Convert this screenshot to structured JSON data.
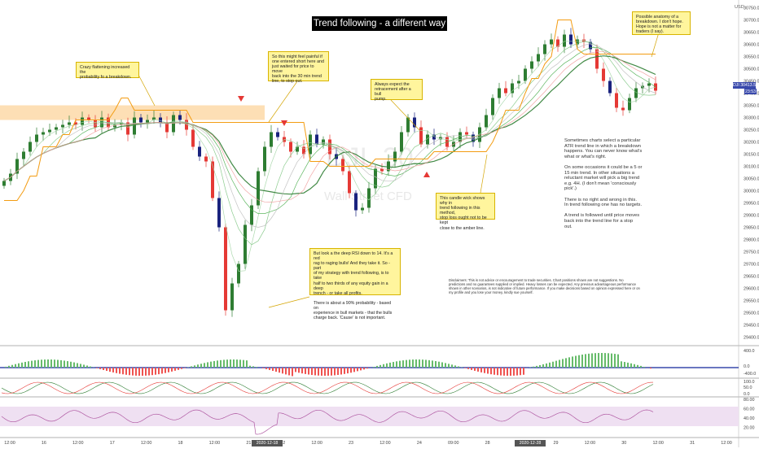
{
  "title": "Trend following  - a different way",
  "currency": "USD",
  "symbol_tag": "DJI",
  "price_tag": "30413.5",
  "time_tag": "23:53",
  "crosshair_time_1": "2020-12-18 10:00",
  "crosshair_time_2": "2020-12-28 15:00",
  "watermark": {
    "symbol": "DJI, 30",
    "name": "Wall Street CFD"
  },
  "notes": {
    "crazy_flattening": "Crazy flattening increased the\nprobability fo a breakdown.",
    "painful": "So this might feel painful if\none entered short here and\njust waited for price to move\nback into the 30 min trend\nline, to stop out.",
    "retracement": "Always expect the\nretracement after a bull\npump.",
    "anatomy": "Possible anatomy of a\nbreakdown. I don't hope.\nHope is not a matter for\ntraders (I say).",
    "candle_wick": "This candle wick shows why in\ntrend following in this method,\nstop loss ought not to be kept\nclose to the amber line.",
    "deep_rsi": "But look a the deep RSI down to 14. It's a red\nrag to raging bulls! And they take it. So - part\nof my strategy with trend following, is to take\nhalf to two thirds of any equity gain in a deep\ntrench - or take all profits.\n\nThere is about a 90% probability - based on\nexperience in bull markets - that the bulls\ncharge back. 'Cause' is not important.",
    "side_text": "Sometimes charts select a particular\nATR trend line in which a breakdown\nhappens. You can never know what's\nwhat or what's right.\n\nOn some occasions it could be a 5 or\n15 min trend. In other situations a\nreluctant market will pick a big trend\ne.g. 4H. (I don't mean 'consciously\npick'.)\n\nThere is no right and wrong in this.\nIn trend following one has no targets.\n\nA trend is followed until price moves\nback into the trend line for a stop\nout.",
    "disclaimer": "Disclaimers: This is not advice or encouragement to trade securities. Chart positions shown are not suggestions. No predictions and no guarantees supplied or implied. Heavy losses can be expected. Any previous advantageous performance shown in other scenarios, is not indicative of future performance. If you make decisions based on opinion expressed here or on my profile and you lose your money, kindly sue yourself."
  },
  "colors": {
    "up": "#2e7d32",
    "down": "#e53935",
    "candle_dark": "#1a237e",
    "amber": "#f39c12",
    "zone": "#fdd9a8",
    "rsi_line": "#b05aa3",
    "rsi_band": "#efe0f2",
    "macd_green": "#66bb6a",
    "macd_red": "#ef5350",
    "baseline_blue": "#3949ab"
  },
  "chart_data": {
    "type": "candlestick",
    "price_ticks": [
      "30750.0",
      "30700.0",
      "30650.0",
      "30600.0",
      "30550.0",
      "30500.0",
      "30450.0",
      "30400.0",
      "30350.0",
      "30300.0",
      "30250.0",
      "30200.0",
      "30150.0",
      "30100.0",
      "30050.0",
      "30000.0",
      "29950.0",
      "29900.0",
      "29850.0",
      "29800.0",
      "29750.0",
      "29700.0",
      "29650.0",
      "29600.0",
      "29550.0",
      "29500.0",
      "29450.0",
      "29400.0"
    ],
    "ylim": [
      29375,
      30775
    ],
    "time_labels": [
      "12:00",
      "16",
      "12:00",
      "17",
      "12:00",
      "18",
      "12:00",
      "21",
      "22",
      "12:00",
      "23",
      "12:00",
      "24",
      "09:00",
      "28",
      "12:00",
      "29",
      "12:00",
      "30",
      "12:00",
      "31",
      "12:00"
    ],
    "close_path": [
      30040,
      30070,
      30130,
      30160,
      30200,
      30230,
      30240,
      30250,
      30260,
      30270,
      30280,
      30270,
      30300,
      30290,
      30260,
      30300,
      30260,
      30270,
      30280,
      30230,
      30300,
      30280,
      30290,
      30300,
      30280,
      30240,
      30310,
      30290,
      30250,
      30180,
      30140,
      30120,
      29970,
      29850,
      29510,
      29620,
      29700,
      29860,
      29940,
      30080,
      30180,
      30240,
      30220,
      30200,
      30160,
      30180,
      30150,
      30230,
      30190,
      30210,
      30150,
      30130,
      30080,
      29990,
      29920,
      29930,
      30010,
      30090,
      30080,
      30120,
      30160,
      30240,
      30300,
      30260,
      30190,
      30230,
      30210,
      30220,
      30180,
      30200,
      30240,
      30230,
      30200,
      30260,
      30310,
      30380,
      30420,
      30400,
      30440,
      30450,
      30500,
      30530,
      30560,
      30600,
      30620,
      30590,
      30640,
      30600,
      30620,
      30610,
      30580,
      30500,
      30450,
      30400,
      30340,
      30330,
      30380,
      30420,
      30430,
      30440,
      30410
    ],
    "atr_trend_line": [
      29960,
      29960,
      29960,
      30000,
      30060,
      30060,
      30180,
      30180,
      30180,
      30230,
      30230,
      30290,
      30290,
      30290,
      30290,
      30290,
      30290,
      30330,
      30380,
      30380,
      30330,
      30330,
      30330,
      30330,
      30330,
      30330,
      30330,
      30330,
      30330,
      30280,
      30280,
      30280,
      30280,
      30280,
      30280,
      30280,
      30280,
      30280,
      30280,
      30280,
      30280,
      30280,
      30280,
      30280,
      30280,
      30280,
      30280,
      30120,
      30120,
      30120,
      30100,
      30100,
      30100,
      30100,
      30100,
      30100,
      30100,
      30130,
      30130,
      30130,
      30130,
      30130,
      30130,
      30130,
      30130,
      30130,
      30160,
      30160,
      30160,
      30160,
      30160,
      30160,
      30160,
      30160,
      30160,
      30200,
      30260,
      30330,
      30330,
      30330,
      30400,
      30460,
      30460,
      30520,
      30550,
      30700,
      30700,
      30700,
      30580,
      30560,
      30560,
      30560,
      30560,
      30560,
      30560,
      30560,
      30560,
      30560,
      30560,
      30560,
      30560
    ],
    "resistance_zone": [
      30290,
      30350
    ],
    "rsi_ticks": [
      "80.00",
      "60.00",
      "40.00",
      "20.00"
    ],
    "rsi_band": [
      30,
      70
    ],
    "macd_ticks": [
      "400.0",
      "0.0",
      "-400.0"
    ],
    "stoch_ticks": [
      "100.0",
      "50.0",
      "0.0"
    ]
  }
}
